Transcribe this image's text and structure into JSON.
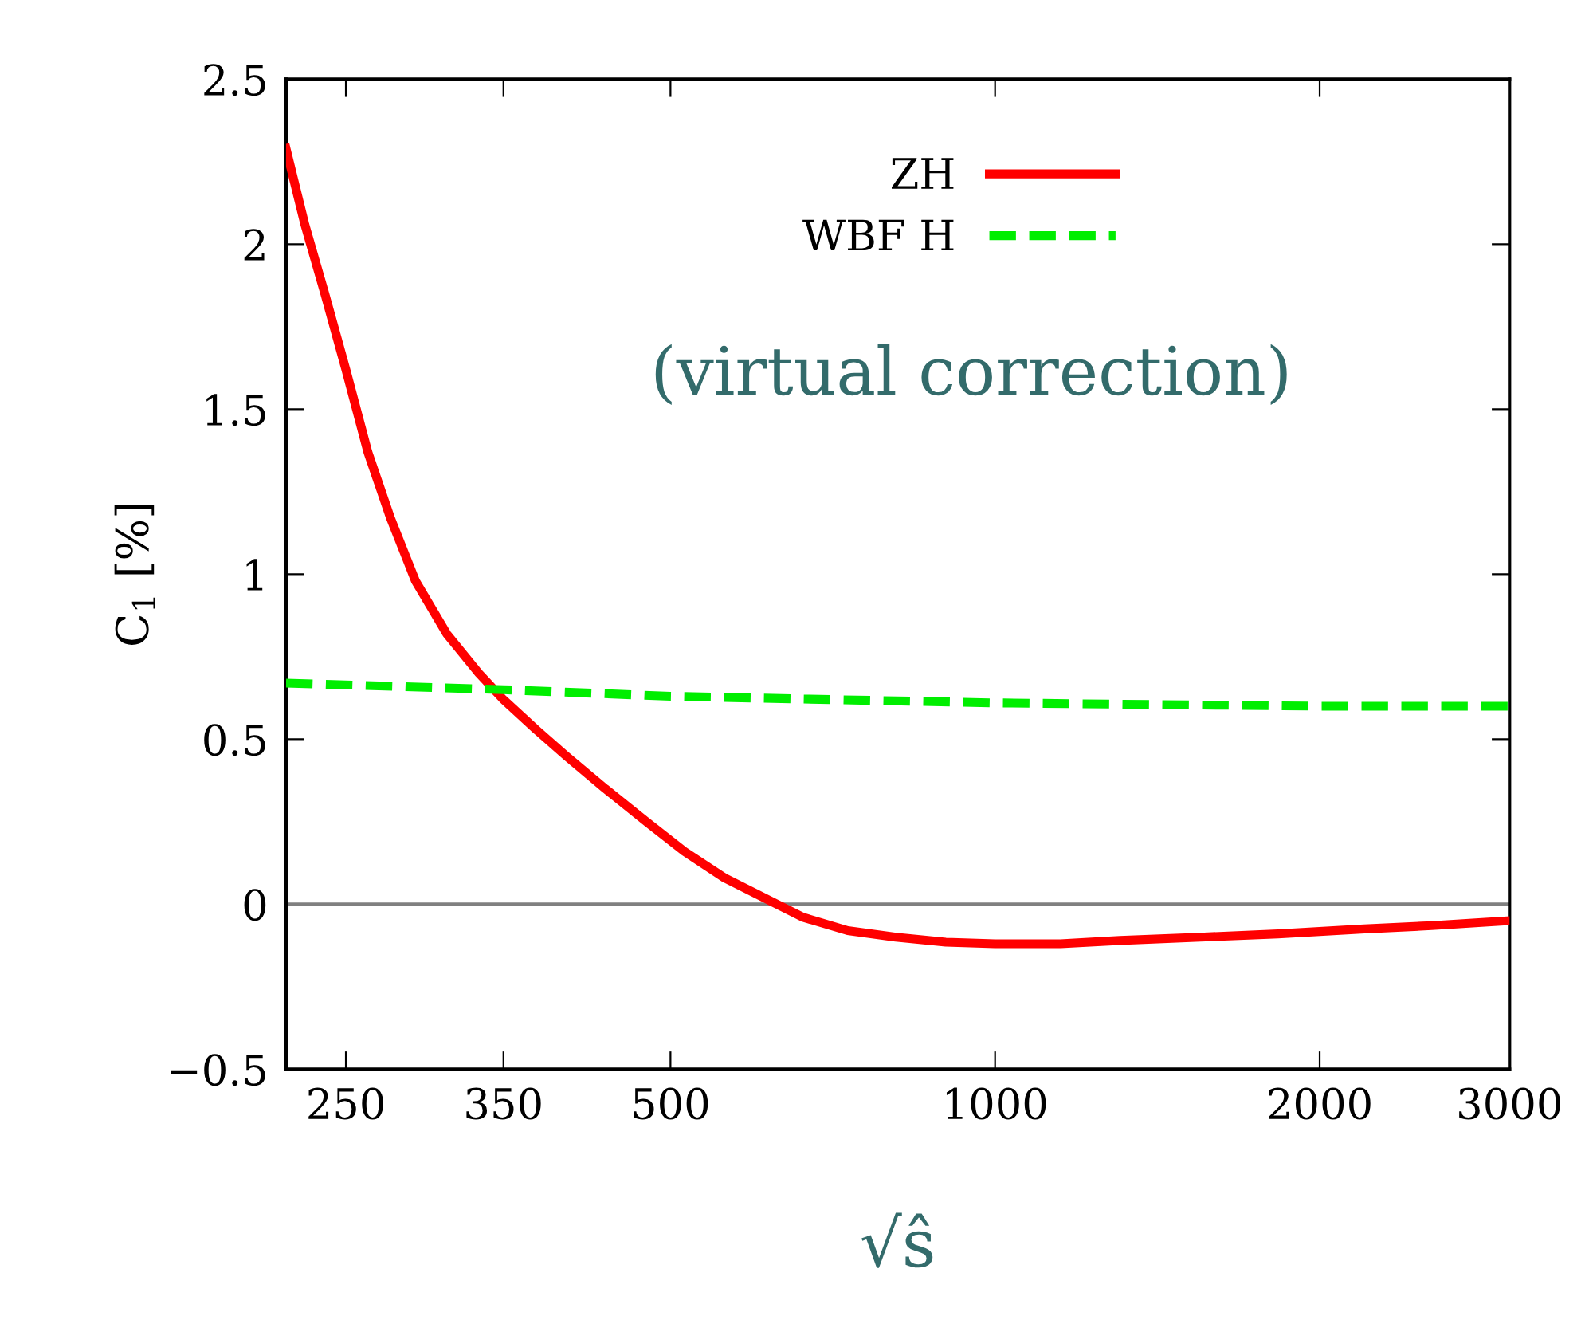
{
  "chart_data": {
    "type": "line",
    "xlabel": "√ŝ",
    "ylabel": "C$_{1}$ [%]",
    "log": "x",
    "xlim": [
      220,
      3000
    ],
    "xticks": [
      250,
      350,
      500,
      1000,
      2000,
      3000
    ],
    "ylim": [
      -0.5,
      2.5
    ],
    "yticks": [
      {
        "value": -0.5,
        "label": "−0.5"
      },
      0,
      0.5,
      1,
      1.5,
      2,
      2.5
    ],
    "grid": false,
    "legend": "top",
    "annotations": [
      "(virtual correction)"
    ],
    "ref_lines": [
      {
        "axis": "y",
        "value": 0,
        "color": "#808080"
      }
    ],
    "series": [
      {
        "name": "ZH",
        "color": "#ff0000",
        "line_style": "solid",
        "x": [
          220,
          229,
          239,
          250,
          262,
          275,
          290,
          310,
          332,
          350,
          375,
          400,
          435,
          475,
          515,
          561,
          610,
          664,
          730,
          809,
          900,
          1000,
          1150,
          1305,
          1550,
          1830,
          2200,
          2540,
          3000
        ],
        "values": [
          2.29,
          2.06,
          1.85,
          1.62,
          1.37,
          1.17,
          0.98,
          0.82,
          0.7,
          0.62,
          0.53,
          0.45,
          0.35,
          0.25,
          0.16,
          0.08,
          0.02,
          -0.04,
          -0.08,
          -0.1,
          -0.115,
          -0.12,
          -0.12,
          -0.11,
          -0.1,
          -0.09,
          -0.075,
          -0.065,
          -0.05
        ]
      },
      {
        "name": "WBF H",
        "color": "#00ee00",
        "line_style": "dashed",
        "x": [
          220,
          350,
          500,
          1000,
          2000,
          3000
        ],
        "values": [
          0.67,
          0.65,
          0.63,
          0.61,
          0.6,
          0.6
        ]
      }
    ]
  }
}
